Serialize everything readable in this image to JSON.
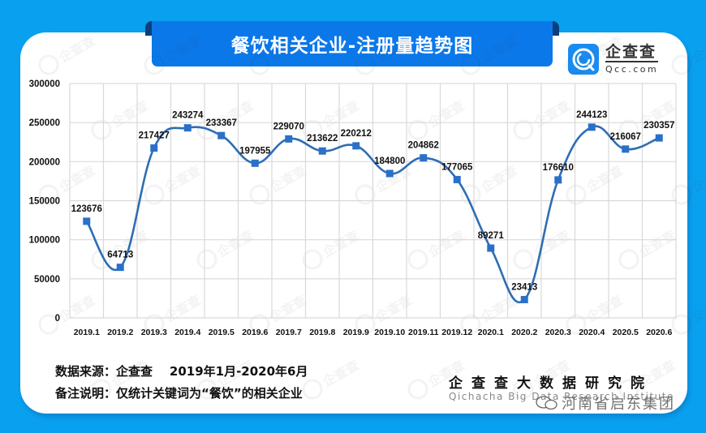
{
  "header": {
    "title": "餐饮相关企业-注册量趋势图"
  },
  "brand": {
    "logo_cn": "企查查",
    "logo_en": "Qcc.com",
    "accent_color": "#0b78ea",
    "background_color": "#0aa0f0"
  },
  "footer": {
    "source": "数据来源：企查查    2019年1月-2020年6月",
    "note": "备注说明：仅统计关键词为“餐饮”的相关企业",
    "institute_cn": "企查查大数据研究院",
    "institute_en": "Qichacha Big Data Research Institute",
    "wechat_watermark": "河南省启东集团"
  },
  "chart_data": {
    "type": "line",
    "title": "餐饮相关企业-注册量趋势图",
    "xlabel": "",
    "ylabel": "",
    "categories": [
      "2019.1",
      "2019.2",
      "2019.3",
      "2019.4",
      "2019.5",
      "2019.6",
      "2019.7",
      "2019.8",
      "2019.9",
      "2019.10",
      "2019.11",
      "2019.12",
      "2020.1",
      "2020.2",
      "2020.3",
      "2020.4",
      "2020.5",
      "2020.6"
    ],
    "series": [
      {
        "name": "注册量",
        "values": [
          123676,
          64713,
          217427,
          243274,
          233367,
          197955,
          229070,
          213622,
          220212,
          184800,
          204862,
          177065,
          89271,
          23413,
          176610,
          244123,
          216067,
          230357
        ],
        "color": "#2e6db4",
        "marker": "square",
        "smooth": true
      }
    ],
    "ylim": [
      0,
      300000
    ],
    "yticks": [
      0,
      50000,
      100000,
      150000,
      200000,
      250000,
      300000
    ],
    "grid": true,
    "legend": "none",
    "data_labels": true
  }
}
